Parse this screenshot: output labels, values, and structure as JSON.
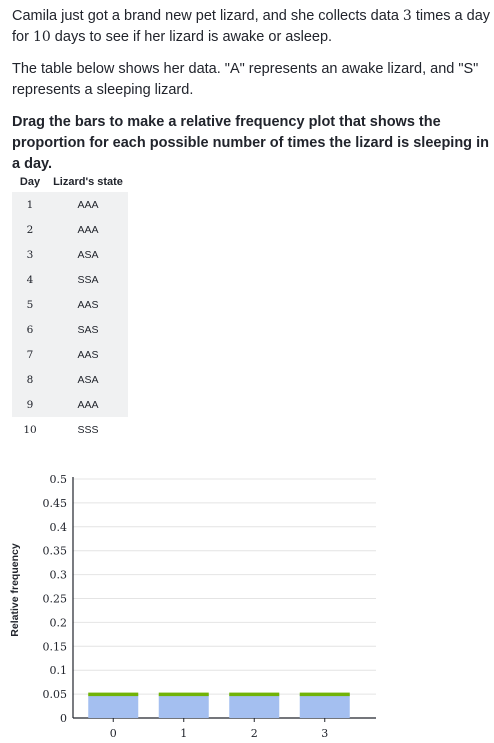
{
  "prompt": {
    "p1_a": "Camila just got a brand new pet lizard, and she collects data ",
    "p1_n1": "3",
    "p1_b": " times a day for ",
    "p1_n2": "10",
    "p1_c": " days to see if her lizard is awake or asleep.",
    "p2": "The table below shows her data. \"A\" represents an awake lizard, and \"S\" represents a sleeping lizard.",
    "instruction": "Drag the bars to make a relative frequency plot that shows the proportion for each possible number of times the lizard is sleeping in a day."
  },
  "table": {
    "headers": [
      "Day",
      "Lizard's state"
    ],
    "rows": [
      {
        "day": "1",
        "state": "AAA"
      },
      {
        "day": "2",
        "state": "AAA"
      },
      {
        "day": "3",
        "state": "ASA"
      },
      {
        "day": "4",
        "state": "SSA"
      },
      {
        "day": "5",
        "state": "AAS"
      },
      {
        "day": "6",
        "state": "SAS"
      },
      {
        "day": "7",
        "state": "AAS"
      },
      {
        "day": "8",
        "state": "ASA"
      },
      {
        "day": "9",
        "state": "AAA"
      },
      {
        "day": "10",
        "state": "SSS"
      }
    ]
  },
  "chart_data": {
    "type": "bar",
    "categories": [
      "0",
      "1",
      "2",
      "3"
    ],
    "values": [
      0.05,
      0.05,
      0.05,
      0.05
    ],
    "ylabel": "Relative frequency",
    "xlabel": "",
    "ylim": [
      0,
      0.5
    ],
    "yticks": [
      "0",
      "0.05",
      "0.1",
      "0.15",
      "0.2",
      "0.25",
      "0.3",
      "0.35",
      "0.4",
      "0.45",
      "0.5"
    ],
    "grid": true,
    "colors": {
      "bar": "#a4bff0",
      "handle": "#71b307",
      "grid": "#e4e4e4",
      "axis": "#21242c"
    }
  }
}
